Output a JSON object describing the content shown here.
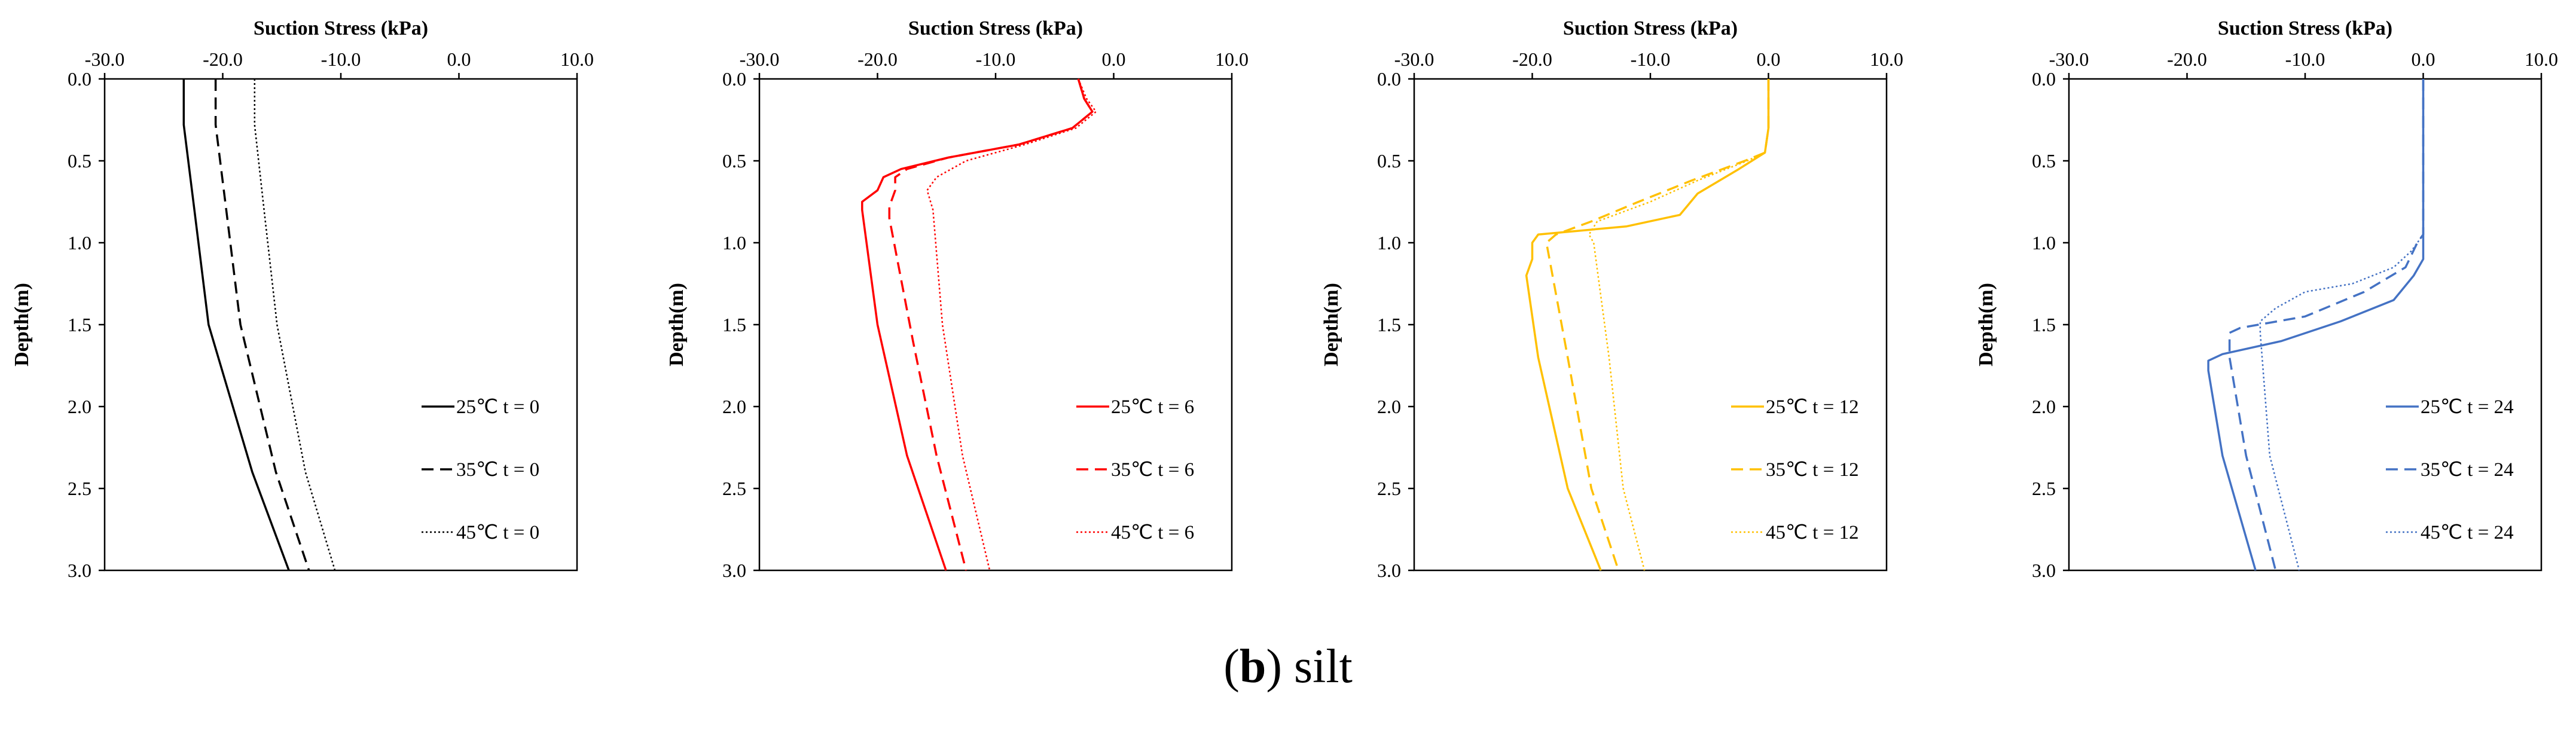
{
  "chart_data": [
    {
      "type": "line",
      "title": "Suction Stress (kPa)",
      "xlabel": "Suction Stress (kPa)",
      "ylabel": "Depth(m)",
      "xlim": [
        -30,
        10
      ],
      "ylim": [
        0,
        3
      ],
      "x_ticks": [
        "-30.0",
        "-20.0",
        "-10.0",
        "0.0",
        "10.0"
      ],
      "y_ticks": [
        "0.0",
        "0.5",
        "1.0",
        "1.5",
        "2.0",
        "2.5",
        "3.0"
      ],
      "legend_position": "right",
      "series": [
        {
          "name": "25℃  t = 0",
          "color": "#000000",
          "dash": "solid",
          "points": [
            [
              -23.3,
              0
            ],
            [
              -23.3,
              0.28
            ],
            [
              -22.4,
              0.8
            ],
            [
              -21.2,
              1.5
            ],
            [
              -17.5,
              2.4
            ],
            [
              -14.4,
              3.0
            ]
          ]
        },
        {
          "name": "35℃  t = 0",
          "color": "#000000",
          "dash": "dashed",
          "points": [
            [
              -20.6,
              0
            ],
            [
              -20.6,
              0.28
            ],
            [
              -19.7,
              0.8
            ],
            [
              -18.5,
              1.5
            ],
            [
              -15.5,
              2.4
            ],
            [
              -12.7,
              3.0
            ]
          ]
        },
        {
          "name": "45℃  t = 0",
          "color": "#000000",
          "dash": "dotted",
          "points": [
            [
              -17.3,
              0
            ],
            [
              -17.3,
              0.28
            ],
            [
              -16.5,
              0.8
            ],
            [
              -15.4,
              1.5
            ],
            [
              -13.0,
              2.4
            ],
            [
              -10.5,
              3.0
            ]
          ]
        }
      ]
    },
    {
      "type": "line",
      "title": "Suction Stress (kPa)",
      "xlabel": "Suction Stress (kPa)",
      "ylabel": "Depth(m)",
      "xlim": [
        -30,
        10
      ],
      "ylim": [
        0,
        3
      ],
      "x_ticks": [
        "-30.0",
        "-20.0",
        "-10.0",
        "0.0",
        "10.0"
      ],
      "y_ticks": [
        "0.0",
        "0.5",
        "1.0",
        "1.5",
        "2.0",
        "2.5",
        "3.0"
      ],
      "legend_position": "right",
      "series": [
        {
          "name": "25℃  t = 6",
          "color": "#ff0000",
          "dash": "solid",
          "points": [
            [
              -3.0,
              0
            ],
            [
              -2.5,
              0.12
            ],
            [
              -1.8,
              0.2
            ],
            [
              -3.5,
              0.3
            ],
            [
              -8.0,
              0.4
            ],
            [
              -14.0,
              0.48
            ],
            [
              -18.0,
              0.55
            ],
            [
              -19.5,
              0.6
            ],
            [
              -20.0,
              0.68
            ],
            [
              -21.3,
              0.75
            ],
            [
              -21.3,
              0.8
            ],
            [
              -20.0,
              1.5
            ],
            [
              -17.5,
              2.3
            ],
            [
              -14.2,
              3.0
            ]
          ]
        },
        {
          "name": "35℃  t = 6",
          "color": "#ff0000",
          "dash": "dashed",
          "points": [
            [
              -3.0,
              0
            ],
            [
              -2.5,
              0.12
            ],
            [
              -1.8,
              0.2
            ],
            [
              -3.5,
              0.3
            ],
            [
              -8.0,
              0.4
            ],
            [
              -14.0,
              0.48
            ],
            [
              -17.5,
              0.55
            ],
            [
              -18.5,
              0.6
            ],
            [
              -18.5,
              0.68
            ],
            [
              -19.0,
              0.78
            ],
            [
              -19.0,
              0.85
            ],
            [
              -17.0,
              1.6
            ],
            [
              -15.0,
              2.3
            ],
            [
              -12.5,
              3.0
            ]
          ]
        },
        {
          "name": "45℃  t = 6",
          "color": "#ff0000",
          "dash": "dotted",
          "points": [
            [
              -3.0,
              0
            ],
            [
              -2.3,
              0.12
            ],
            [
              -1.5,
              0.2
            ],
            [
              -3.2,
              0.3
            ],
            [
              -7.5,
              0.4
            ],
            [
              -12.5,
              0.5
            ],
            [
              -15.0,
              0.6
            ],
            [
              -15.8,
              0.68
            ],
            [
              -15.3,
              0.8
            ],
            [
              -14.5,
              1.5
            ],
            [
              -12.8,
              2.3
            ],
            [
              -10.5,
              3.0
            ]
          ]
        }
      ]
    },
    {
      "type": "line",
      "title": "Suction Stress (kPa)",
      "xlabel": "Suction Stress (kPa)",
      "ylabel": "Depth(m)",
      "xlim": [
        -30,
        10
      ],
      "ylim": [
        0,
        3
      ],
      "x_ticks": [
        "-30.0",
        "-20.0",
        "-10.0",
        "0.0",
        "10.0"
      ],
      "y_ticks": [
        "0.0",
        "0.5",
        "1.0",
        "1.5",
        "2.0",
        "2.5",
        "3.0"
      ],
      "legend_position": "right",
      "series": [
        {
          "name": "25℃  t = 12",
          "color": "#ffc000",
          "dash": "solid",
          "points": [
            [
              0.0,
              0
            ],
            [
              0.0,
              0.3
            ],
            [
              -0.3,
              0.45
            ],
            [
              -2.5,
              0.55
            ],
            [
              -6.0,
              0.7
            ],
            [
              -7.5,
              0.83
            ],
            [
              -12.0,
              0.9
            ],
            [
              -19.5,
              0.95
            ],
            [
              -20.0,
              1.0
            ],
            [
              -20.0,
              1.1
            ],
            [
              -20.5,
              1.2
            ],
            [
              -19.5,
              1.7
            ],
            [
              -17.0,
              2.5
            ],
            [
              -14.2,
              3.0
            ]
          ]
        },
        {
          "name": "35℃  t = 12",
          "color": "#ffc000",
          "dash": "dashed",
          "points": [
            [
              0.0,
              0
            ],
            [
              0.0,
              0.3
            ],
            [
              -0.3,
              0.45
            ],
            [
              -2.0,
              0.5
            ],
            [
              -6.5,
              0.62
            ],
            [
              -11.0,
              0.75
            ],
            [
              -15.0,
              0.87
            ],
            [
              -18.0,
              0.95
            ],
            [
              -18.8,
              1.0
            ],
            [
              -17.0,
              1.7
            ],
            [
              -15.0,
              2.5
            ],
            [
              -12.7,
              3.0
            ]
          ]
        },
        {
          "name": "45℃  t = 12",
          "color": "#ffc000",
          "dash": "dotted",
          "points": [
            [
              0.0,
              0
            ],
            [
              0.0,
              0.3
            ],
            [
              -0.3,
              0.45
            ],
            [
              -1.8,
              0.5
            ],
            [
              -6.0,
              0.62
            ],
            [
              -10.0,
              0.75
            ],
            [
              -14.5,
              0.87
            ],
            [
              -15.2,
              0.95
            ],
            [
              -14.8,
              1.0
            ],
            [
              -13.5,
              1.7
            ],
            [
              -12.3,
              2.5
            ],
            [
              -10.5,
              3.0
            ]
          ]
        }
      ]
    },
    {
      "type": "line",
      "title": "Suction Stress (kPa)",
      "xlabel": "Suction Stress (kPa)",
      "ylabel": "Depth(m)",
      "xlim": [
        -30,
        10
      ],
      "ylim": [
        0,
        3
      ],
      "x_ticks": [
        "-30.0",
        "-20.0",
        "-10.0",
        "0.0",
        "10.0"
      ],
      "y_ticks": [
        "0.0",
        "0.5",
        "1.0",
        "1.5",
        "2.0",
        "2.5",
        "3.0"
      ],
      "legend_position": "right",
      "series": [
        {
          "name": "25℃  t = 24",
          "color": "#4472c4",
          "dash": "solid",
          "points": [
            [
              0.0,
              0
            ],
            [
              0.0,
              0.9
            ],
            [
              0.0,
              1.1
            ],
            [
              -0.8,
              1.2
            ],
            [
              -2.5,
              1.35
            ],
            [
              -7.0,
              1.48
            ],
            [
              -12.0,
              1.6
            ],
            [
              -17.0,
              1.68
            ],
            [
              -18.2,
              1.72
            ],
            [
              -18.2,
              1.78
            ],
            [
              -17.0,
              2.3
            ],
            [
              -14.2,
              3.0
            ]
          ]
        },
        {
          "name": "35℃  t = 24",
          "color": "#4472c4",
          "dash": "dashed",
          "points": [
            [
              0.0,
              0
            ],
            [
              0.0,
              0.95
            ],
            [
              -0.5,
              1.0
            ],
            [
              -1.5,
              1.15
            ],
            [
              -5.0,
              1.3
            ],
            [
              -10.0,
              1.45
            ],
            [
              -15.5,
              1.52
            ],
            [
              -16.4,
              1.55
            ],
            [
              -16.4,
              1.7
            ],
            [
              -15.0,
              2.3
            ],
            [
              -12.5,
              3.0
            ]
          ]
        },
        {
          "name": "45℃  t = 24",
          "color": "#4472c4",
          "dash": "dotted",
          "points": [
            [
              0.0,
              0
            ],
            [
              0.0,
              0.95
            ],
            [
              -1.0,
              1.05
            ],
            [
              -2.5,
              1.15
            ],
            [
              -6.0,
              1.25
            ],
            [
              -10.0,
              1.3
            ],
            [
              -12.5,
              1.4
            ],
            [
              -13.8,
              1.48
            ],
            [
              -13.8,
              1.55
            ],
            [
              -13.0,
              2.3
            ],
            [
              -10.5,
              3.0
            ]
          ]
        }
      ]
    }
  ],
  "caption": {
    "letter": "b",
    "text": "silt"
  }
}
